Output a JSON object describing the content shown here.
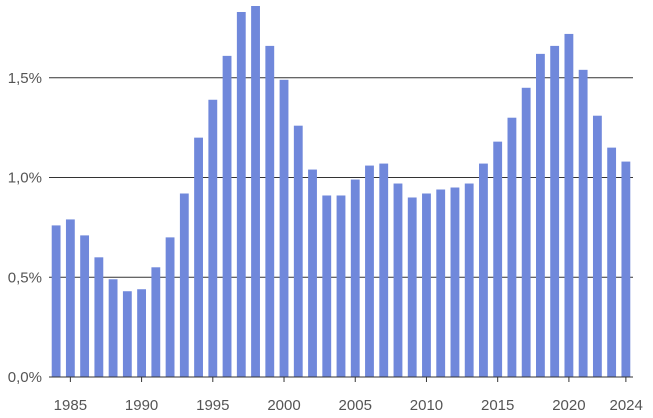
{
  "chart_data": {
    "type": "bar",
    "title": "",
    "xlabel": "",
    "ylabel": "",
    "bar_color": "#7088db",
    "grid_color": "#333333",
    "axis_color": "#333333",
    "grid": true,
    "ylim": [
      0,
      1.85
    ],
    "yticks": [
      0,
      0.5,
      1.0,
      1.5
    ],
    "ytick_labels": [
      "0,0%",
      "0,5%",
      "1,0%",
      "1,5%"
    ],
    "xtick_labels": [
      {
        "year": 1985,
        "label": "1985"
      },
      {
        "year": 1990,
        "label": "1990"
      },
      {
        "year": 1995,
        "label": "1995"
      },
      {
        "year": 2000,
        "label": "2000"
      },
      {
        "year": 2005,
        "label": "2005"
      },
      {
        "year": 2010,
        "label": "2010"
      },
      {
        "year": 2015,
        "label": "2015"
      },
      {
        "year": 2020,
        "label": "2020"
      },
      {
        "year": 2024,
        "label": "2024"
      }
    ],
    "categories": [
      1984,
      1985,
      1986,
      1987,
      1988,
      1989,
      1990,
      1991,
      1992,
      1993,
      1994,
      1995,
      1996,
      1997,
      1998,
      1999,
      2000,
      2001,
      2002,
      2003,
      2004,
      2005,
      2006,
      2007,
      2008,
      2009,
      2010,
      2011,
      2012,
      2013,
      2014,
      2015,
      2016,
      2017,
      2018,
      2019,
      2020,
      2021,
      2022,
      2023,
      2024
    ],
    "values": [
      0.76,
      0.79,
      0.71,
      0.6,
      0.49,
      0.43,
      0.44,
      0.55,
      0.7,
      0.92,
      1.2,
      1.39,
      1.61,
      1.83,
      1.86,
      1.66,
      1.49,
      1.26,
      1.04,
      0.91,
      0.91,
      0.99,
      1.06,
      1.07,
      0.97,
      0.9,
      0.92,
      0.94,
      0.95,
      0.97,
      1.07,
      1.18,
      1.3,
      1.45,
      1.62,
      1.66,
      1.72,
      1.54,
      1.31,
      1.15,
      1.08
    ]
  }
}
